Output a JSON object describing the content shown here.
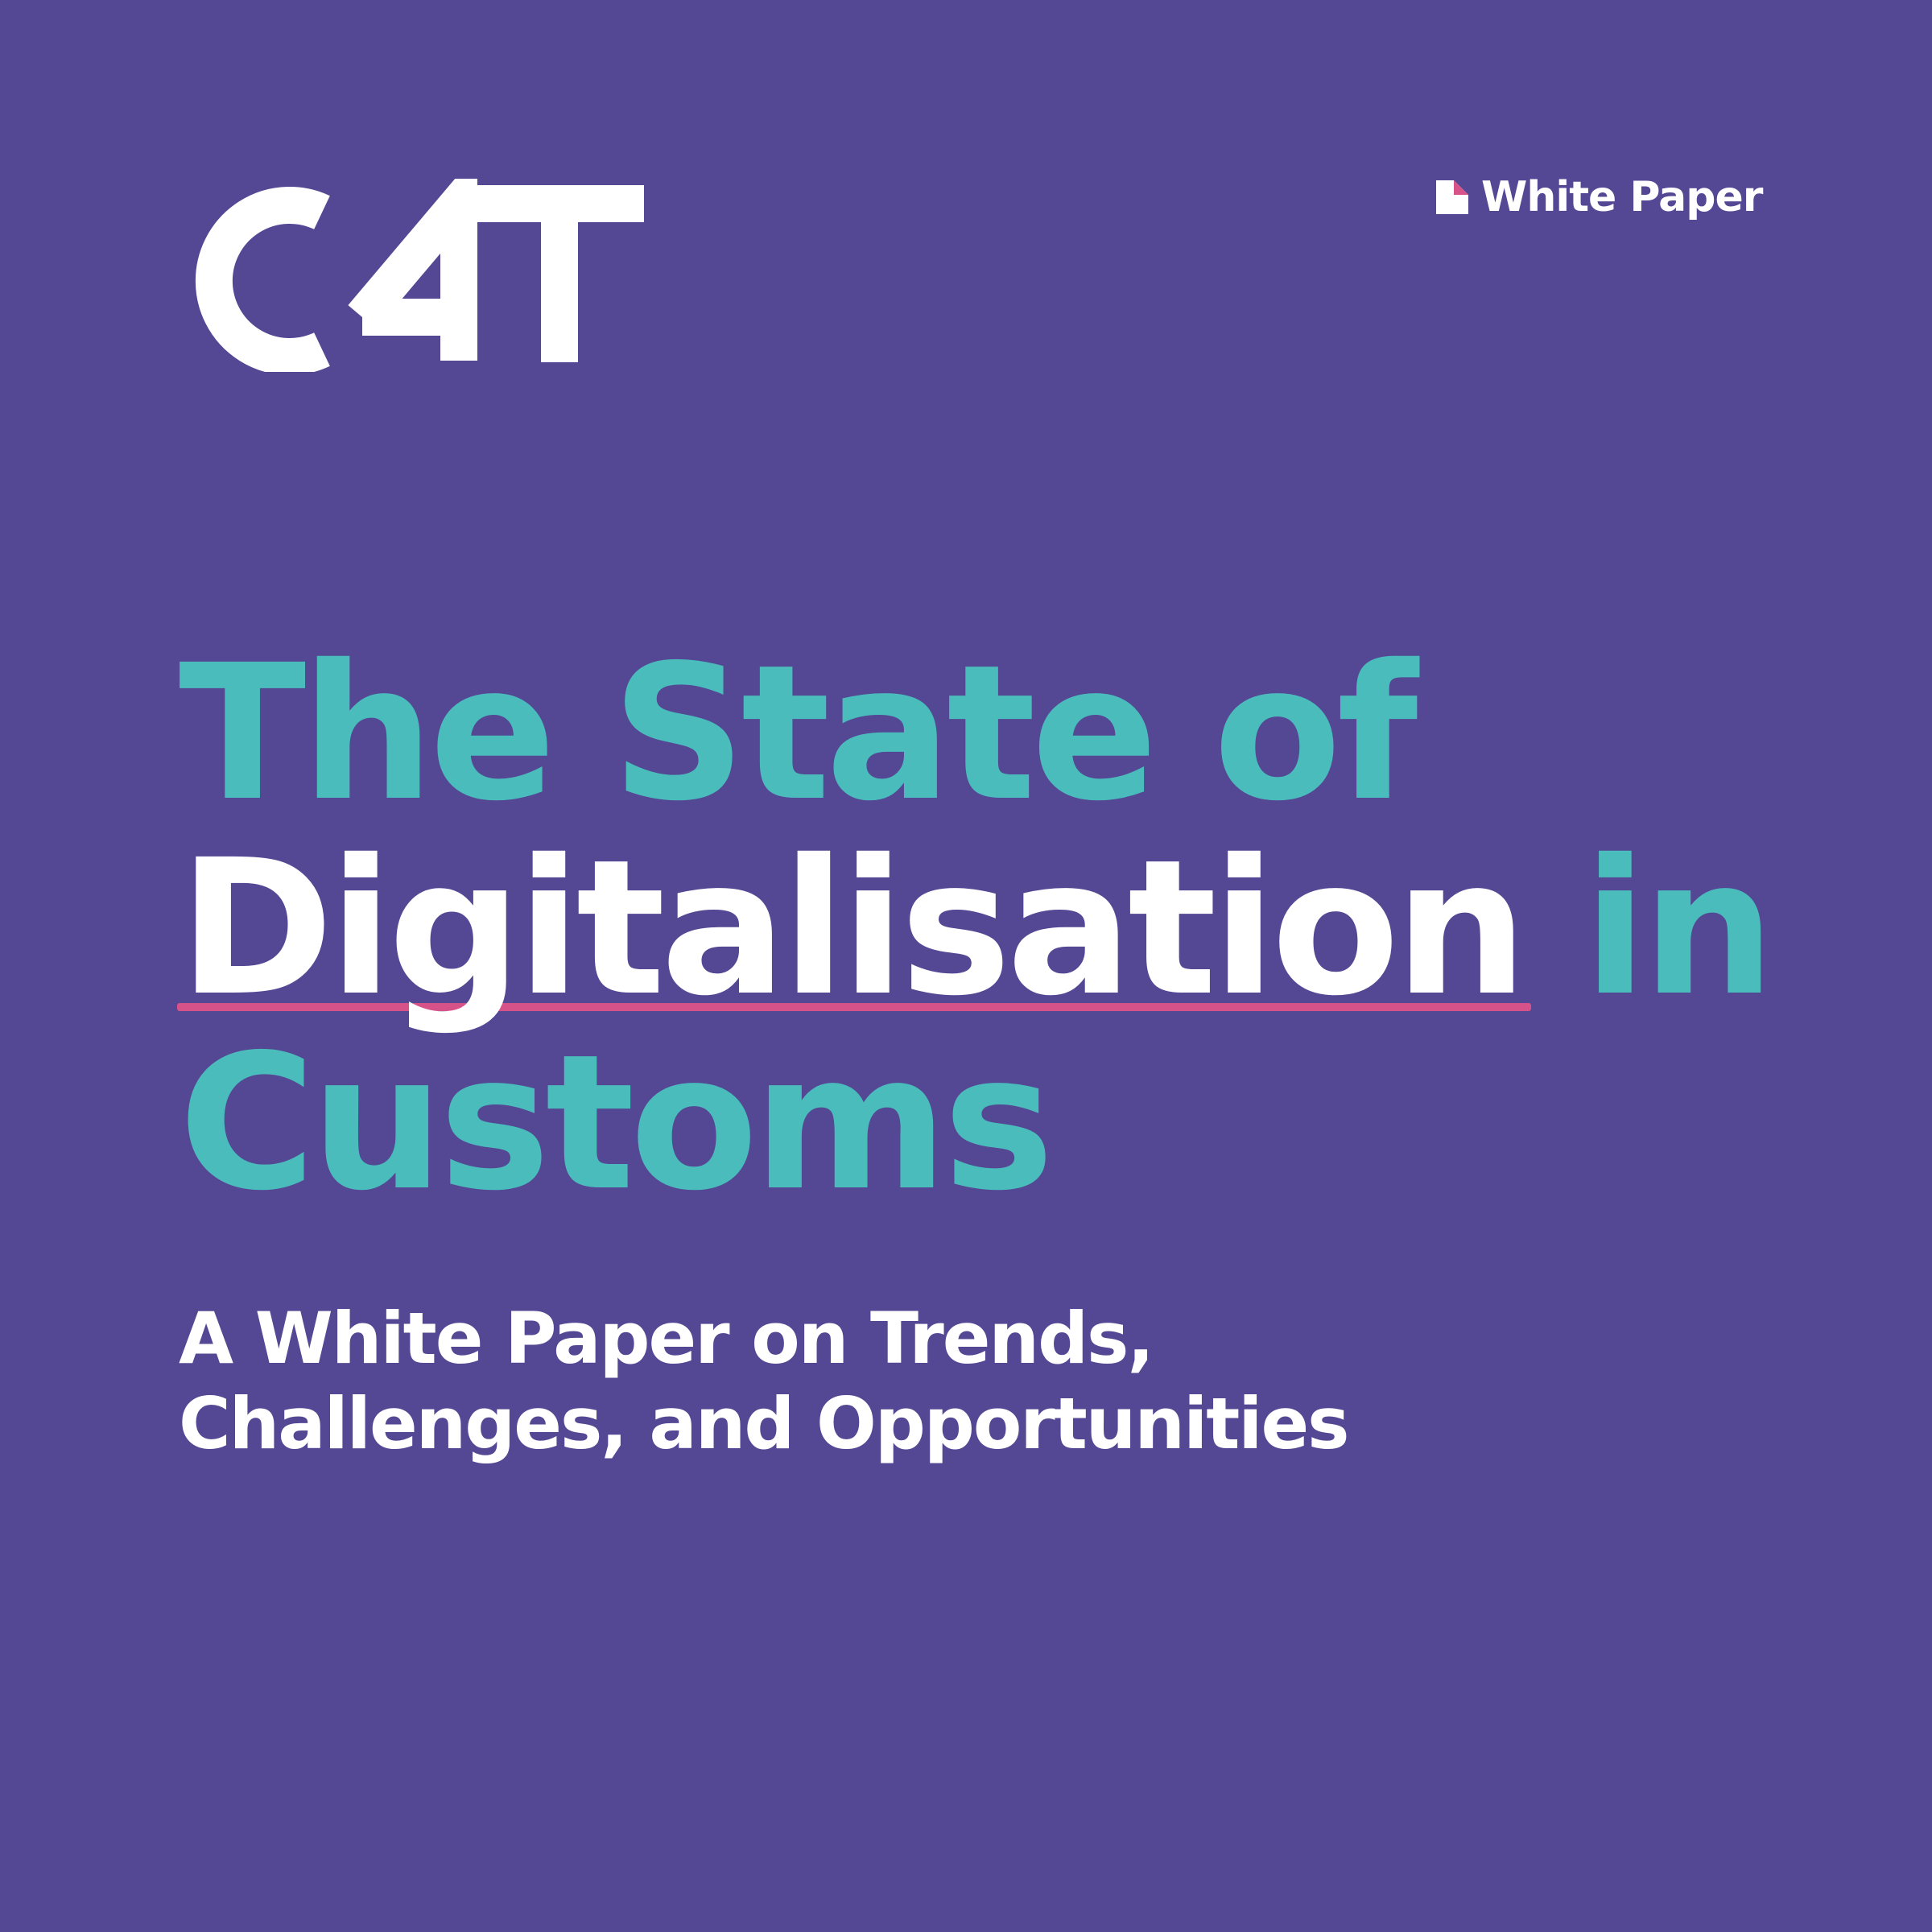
{
  "brand": {
    "logo_text": "C4T"
  },
  "badge": {
    "icon": "document-icon",
    "label": "White Paper"
  },
  "title": {
    "line1": "The State of",
    "line2_word": "Digitalisation",
    "line2_rest": " in",
    "line3": "Customs"
  },
  "subtitle": {
    "line1": "A White Paper on Trends,",
    "line2": "Challenges, and Opportunities"
  },
  "colors": {
    "background": "#544794",
    "accent_teal": "#4bbcbc",
    "underline_pink": "#d8528a",
    "text_white": "#ffffff"
  }
}
